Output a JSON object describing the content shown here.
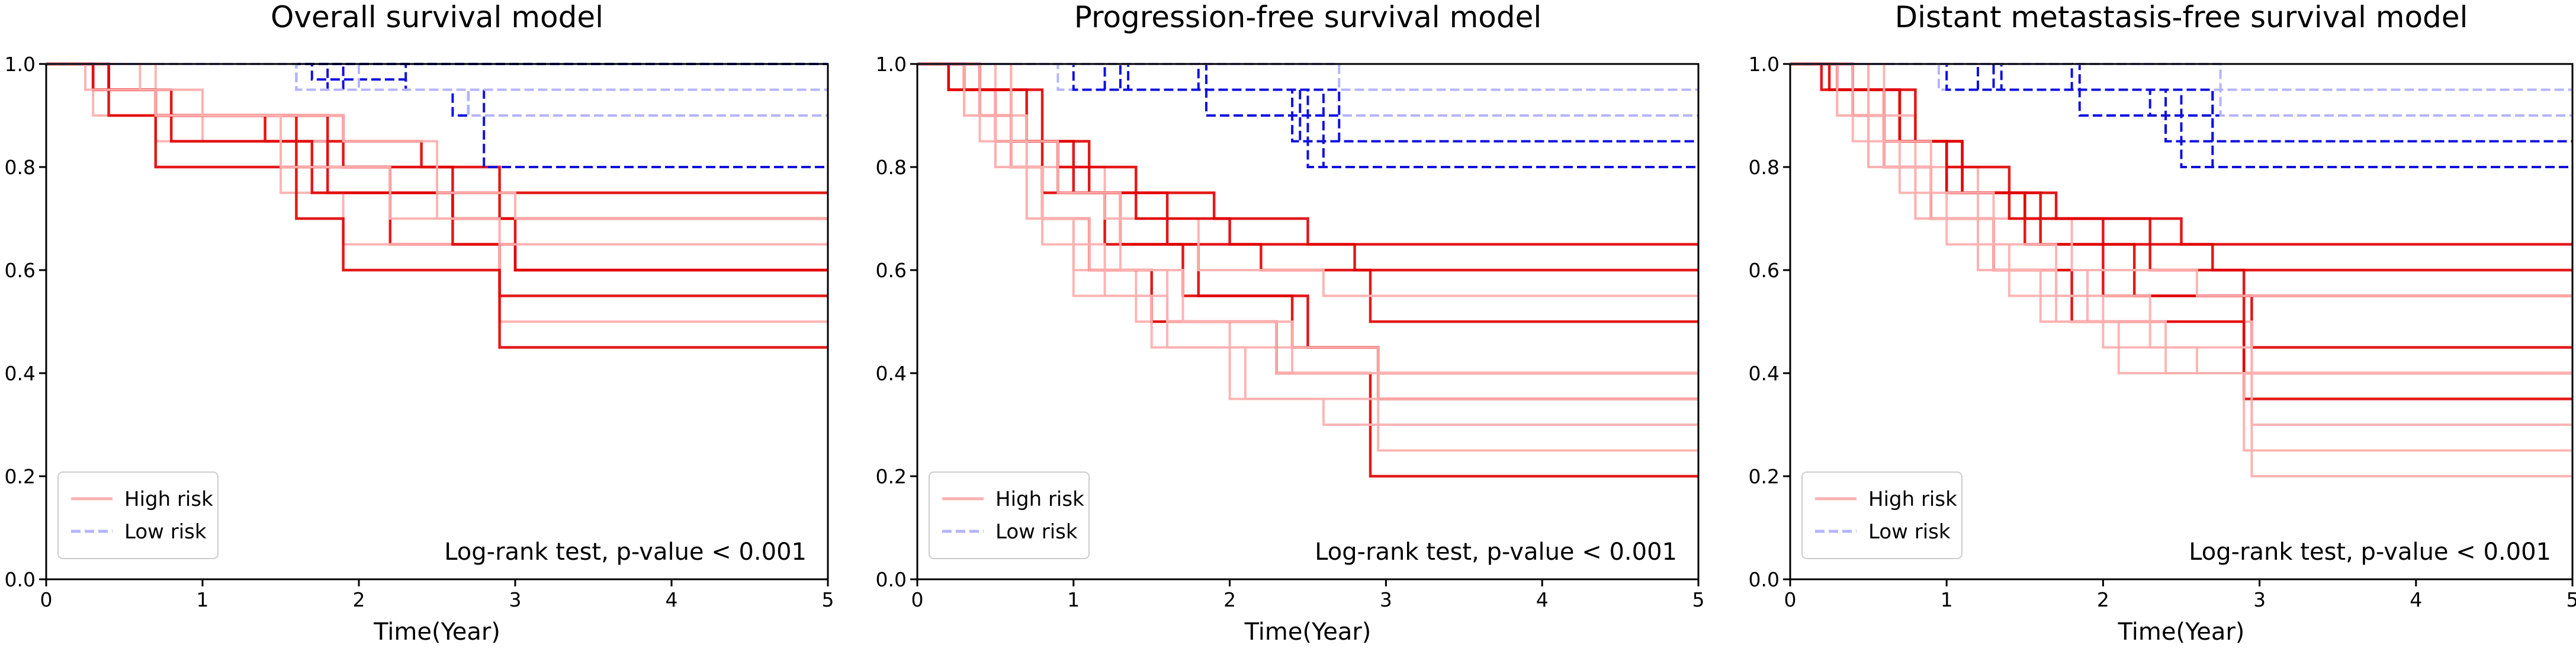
{
  "chart_data": [
    {
      "type": "line",
      "title": "Overall survival model",
      "xlabel": "Time(Year)",
      "ylabel": "",
      "xlim": [
        0,
        5
      ],
      "ylim": [
        0,
        1.0
      ],
      "xticks": [
        "0",
        "1",
        "2",
        "3",
        "4",
        "5"
      ],
      "yticks": [
        "0.0",
        "0.2",
        "0.4",
        "0.6",
        "0.8",
        "1.0"
      ],
      "legend": [
        "High risk",
        "Low risk"
      ],
      "legend_position": "lower-left",
      "annotation": "Log-rank test, p-value < 0.001",
      "high_risk": [
        {
          "times": [
            0.3,
            0.7,
            1.4,
            2.4,
            2.9
          ],
          "values": [
            0.95,
            0.9,
            0.85,
            0.8,
            0.75
          ]
        },
        {
          "times": [
            0.4,
            0.7,
            1.6,
            2.2,
            2.9
          ],
          "values": [
            0.95,
            0.9,
            0.8,
            0.75,
            0.7
          ]
        },
        {
          "times": [
            0.7,
            1.0,
            1.8,
            2.5,
            2.9
          ],
          "values": [
            0.95,
            0.85,
            0.8,
            0.7,
            0.65
          ]
        },
        {
          "times": [
            0.3,
            0.7,
            1.9,
            2.6,
            3.0
          ],
          "values": [
            0.95,
            0.9,
            0.8,
            0.7,
            0.6
          ]
        },
        {
          "times": [
            0.3,
            0.7,
            1.8,
            2.2,
            2.9
          ],
          "values": [
            0.95,
            0.9,
            0.75,
            0.65,
            0.55
          ]
        },
        {
          "times": [
            0.3,
            0.7,
            1.5,
            1.9,
            2.9
          ],
          "values": [
            0.9,
            0.85,
            0.75,
            0.65,
            0.5
          ]
        },
        {
          "times": [
            0.4,
            0.7,
            1.6,
            1.9,
            2.9
          ],
          "values": [
            0.9,
            0.8,
            0.7,
            0.6,
            0.45
          ]
        },
        {
          "times": [
            0.3,
            0.8,
            1.7,
            2.6,
            3.0
          ],
          "values": [
            0.95,
            0.85,
            0.75,
            0.65,
            0.6
          ]
        },
        {
          "times": [
            0.25,
            0.7,
            1.5,
            2.2,
            2.9
          ],
          "values": [
            0.95,
            0.9,
            0.8,
            0.7,
            0.65
          ]
        },
        {
          "times": [
            0.6,
            1.0,
            1.9,
            2.5,
            3.0
          ],
          "values": [
            0.95,
            0.9,
            0.85,
            0.75,
            0.7
          ]
        }
      ],
      "low_risk": [
        {
          "times": [
            1.6,
            2.7
          ],
          "values": [
            0.95,
            0.9
          ]
        },
        {
          "times": [
            1.7,
            2.3
          ],
          "values": [
            0.97,
            0.95
          ]
        },
        {
          "times": [
            1.9,
            2.6
          ],
          "values": [
            0.95,
            0.9
          ]
        },
        {
          "times": [
            2.0,
            2.7
          ],
          "values": [
            0.95,
            0.9
          ]
        },
        {
          "times": [
            1.8
          ],
          "values": [
            0.95
          ]
        },
        {
          "times": [
            2.3,
            2.8
          ],
          "values": [
            0.95,
            0.8
          ]
        },
        {
          "times": [],
          "values": []
        },
        {
          "times": [
            1.6
          ],
          "values": [
            0.95
          ]
        }
      ]
    },
    {
      "type": "line",
      "title": "Progression-free survival model",
      "xlabel": "Time(Year)",
      "ylabel": "",
      "xlim": [
        0,
        5
      ],
      "ylim": [
        0,
        1.0
      ],
      "xticks": [
        "0",
        "1",
        "2",
        "3",
        "4",
        "5"
      ],
      "yticks": [
        "0.0",
        "0.2",
        "0.4",
        "0.6",
        "0.8",
        "1.0"
      ],
      "legend": [
        "High risk",
        "Low risk"
      ],
      "legend_position": "lower-left",
      "annotation": "Log-rank test, p-value < 0.001",
      "high_risk": [
        {
          "times": [
            0.2,
            0.5,
            0.8,
            1.2,
            1.8,
            2.5,
            2.95
          ],
          "values": [
            0.95,
            0.85,
            0.75,
            0.65,
            0.55,
            0.45,
            0.35
          ]
        },
        {
          "times": [
            0.3,
            0.6,
            0.9,
            1.3,
            1.7,
            2.4,
            2.95
          ],
          "values": [
            0.95,
            0.85,
            0.75,
            0.65,
            0.55,
            0.45,
            0.4
          ]
        },
        {
          "times": [
            0.3,
            0.5,
            0.7,
            1.0,
            1.4,
            2.0,
            2.95
          ],
          "values": [
            0.9,
            0.8,
            0.7,
            0.6,
            0.5,
            0.45,
            0.25
          ]
        },
        {
          "times": [
            0.4,
            0.6,
            0.8,
            1.1,
            1.5,
            2.3,
            2.9
          ],
          "values": [
            0.9,
            0.8,
            0.7,
            0.6,
            0.5,
            0.4,
            0.2
          ]
        },
        {
          "times": [
            0.3,
            0.7,
            1.0,
            1.6,
            2.2,
            2.9
          ],
          "values": [
            0.95,
            0.85,
            0.75,
            0.65,
            0.6,
            0.5
          ]
        },
        {
          "times": [
            0.5,
            0.7,
            1.2,
            1.8,
            2.6
          ],
          "values": [
            0.9,
            0.8,
            0.7,
            0.6,
            0.55
          ]
        },
        {
          "times": [
            0.2,
            0.6,
            0.9,
            1.4,
            2.0,
            2.8
          ],
          "values": [
            0.95,
            0.85,
            0.8,
            0.7,
            0.65,
            0.6
          ]
        },
        {
          "times": [
            0.4,
            0.8,
            1.1,
            1.9,
            2.5
          ],
          "values": [
            0.95,
            0.85,
            0.75,
            0.7,
            0.65
          ]
        },
        {
          "times": [
            0.3,
            0.5,
            0.8,
            1.2,
            1.6,
            2.0
          ],
          "values": [
            0.9,
            0.8,
            0.65,
            0.55,
            0.45,
            0.35
          ]
        },
        {
          "times": [
            0.6,
            0.9,
            1.3,
            1.7,
            2.3
          ],
          "values": [
            0.85,
            0.75,
            0.6,
            0.5,
            0.4
          ]
        },
        {
          "times": [
            0.4,
            0.7,
            1.0,
            1.5,
            2.1,
            2.6
          ],
          "values": [
            0.85,
            0.7,
            0.55,
            0.45,
            0.35,
            0.3
          ]
        },
        {
          "times": [
            0.6,
            0.8,
            1.1,
            1.6,
            2.4
          ],
          "values": [
            0.8,
            0.7,
            0.6,
            0.5,
            0.4
          ]
        }
      ],
      "low_risk": [
        {
          "times": [
            1.35,
            2.4
          ],
          "values": [
            0.95,
            0.9
          ]
        },
        {
          "times": [
            1.8,
            2.45
          ],
          "values": [
            0.95,
            0.85
          ]
        },
        {
          "times": [
            1.3,
            2.6
          ],
          "values": [
            0.95,
            0.8
          ]
        },
        {
          "times": [
            0.9,
            2.7
          ],
          "values": [
            0.95,
            0.9
          ]
        },
        {
          "times": [
            1.85,
            2.4
          ],
          "values": [
            0.9,
            0.85
          ]
        },
        {
          "times": [
            1.2,
            2.7
          ],
          "values": [
            0.95,
            0.85
          ]
        },
        {
          "times": [
            1.0,
            2.5
          ],
          "values": [
            0.95,
            0.8
          ]
        },
        {
          "times": [
            2.7
          ],
          "values": [
            0.95
          ]
        }
      ]
    },
    {
      "type": "line",
      "title": "Distant metastasis-free survival model",
      "xlabel": "Time(Year)",
      "ylabel": "",
      "xlim": [
        0,
        5
      ],
      "ylim": [
        0,
        1.0
      ],
      "xticks": [
        "0",
        "1",
        "2",
        "3",
        "4",
        "5"
      ],
      "yticks": [
        "0.0",
        "0.2",
        "0.4",
        "0.6",
        "0.8",
        "1.0"
      ],
      "legend": [
        "High risk",
        "Low risk"
      ],
      "legend_position": "lower-left",
      "annotation": "Log-rank test, p-value < 0.001",
      "high_risk": [
        {
          "times": [
            0.25,
            0.6,
            1.0,
            1.5,
            2.0,
            2.9
          ],
          "values": [
            0.95,
            0.85,
            0.75,
            0.65,
            0.55,
            0.4
          ]
        },
        {
          "times": [
            0.3,
            0.7,
            1.1,
            1.6,
            2.2,
            2.95
          ],
          "values": [
            0.95,
            0.85,
            0.75,
            0.65,
            0.55,
            0.45
          ]
        },
        {
          "times": [
            0.3,
            0.5,
            0.8,
            1.2,
            1.9,
            2.95
          ],
          "values": [
            0.9,
            0.8,
            0.7,
            0.6,
            0.5,
            0.3
          ]
        },
        {
          "times": [
            0.4,
            0.6,
            0.9,
            1.3,
            1.8,
            2.9
          ],
          "values": [
            0.9,
            0.8,
            0.7,
            0.6,
            0.5,
            0.35
          ]
        },
        {
          "times": [
            0.3,
            0.7,
            1.0,
            1.5,
            2.3,
            2.9
          ],
          "values": [
            0.95,
            0.85,
            0.75,
            0.7,
            0.6,
            0.55
          ]
        },
        {
          "times": [
            0.5,
            0.8,
            1.2,
            1.8,
            2.6
          ],
          "values": [
            0.9,
            0.8,
            0.7,
            0.6,
            0.55
          ]
        },
        {
          "times": [
            0.2,
            0.6,
            1.0,
            1.4,
            2.0,
            2.7
          ],
          "values": [
            0.95,
            0.85,
            0.8,
            0.7,
            0.65,
            0.6
          ]
        },
        {
          "times": [
            0.4,
            0.8,
            1.1,
            1.7,
            2.5
          ],
          "values": [
            0.95,
            0.85,
            0.75,
            0.7,
            0.65
          ]
        },
        {
          "times": [
            0.3,
            0.6,
            0.9,
            1.3,
            1.7,
            2.1,
            2.9
          ],
          "values": [
            0.9,
            0.8,
            0.7,
            0.6,
            0.5,
            0.4,
            0.25
          ]
        },
        {
          "times": [
            0.6,
            0.9,
            1.3,
            1.7,
            2.3,
            2.95
          ],
          "values": [
            0.85,
            0.75,
            0.65,
            0.55,
            0.45,
            0.2
          ]
        },
        {
          "times": [
            0.4,
            0.7,
            1.0,
            1.4,
            2.0,
            2.6
          ],
          "values": [
            0.85,
            0.75,
            0.65,
            0.55,
            0.45,
            0.4
          ]
        },
        {
          "times": [
            0.5,
            0.8,
            1.2,
            1.6,
            2.4
          ],
          "values": [
            0.8,
            0.7,
            0.6,
            0.5,
            0.4
          ]
        }
      ],
      "low_risk": [
        {
          "times": [
            1.35,
            2.3
          ],
          "values": [
            0.95,
            0.9
          ]
        },
        {
          "times": [
            1.8,
            2.4
          ],
          "values": [
            0.95,
            0.85
          ]
        },
        {
          "times": [
            1.3,
            2.7
          ],
          "values": [
            0.95,
            0.8
          ]
        },
        {
          "times": [
            0.95,
            2.75
          ],
          "values": [
            0.95,
            0.9
          ]
        },
        {
          "times": [
            1.85,
            2.4
          ],
          "values": [
            0.9,
            0.85
          ]
        },
        {
          "times": [
            1.2,
            2.7
          ],
          "values": [
            0.95,
            0.85
          ]
        },
        {
          "times": [
            1.0,
            2.5
          ],
          "values": [
            0.95,
            0.8
          ]
        },
        {
          "times": [
            2.75
          ],
          "values": [
            0.95
          ]
        }
      ]
    }
  ],
  "colors": {
    "high_risk_dark": "#e00000",
    "high_risk_light": "#ffb0b0",
    "low_risk_dark": "#1010e0",
    "low_risk_light": "#b4b4ff",
    "axis": "#000000"
  }
}
